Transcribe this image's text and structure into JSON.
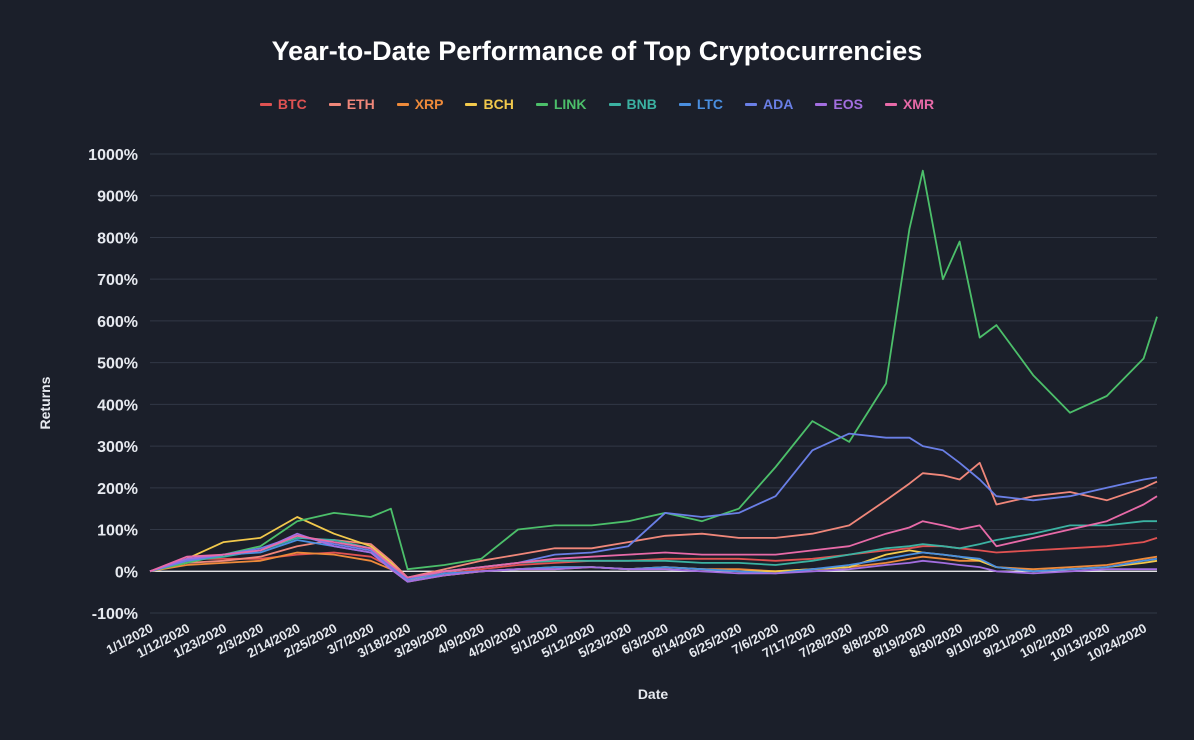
{
  "chart_data": {
    "type": "line",
    "title": "Year-to-Date Performance of Top Cryptocurrencies",
    "xlabel": "Date",
    "ylabel": "Returns",
    "ylim": [
      -100,
      1000
    ],
    "y_ticks": [
      "-100%",
      "0%",
      "100%",
      "200%",
      "300%",
      "400%",
      "500%",
      "600%",
      "700%",
      "800%",
      "900%",
      "1000%"
    ],
    "x_ticks": [
      "1/1/2020",
      "1/12/2020",
      "1/23/2020",
      "2/3/2020",
      "2/14/2020",
      "2/25/2020",
      "3/7/2020",
      "3/18/2020",
      "3/29/2020",
      "4/9/2020",
      "4/20/2020",
      "5/1/2020",
      "5/12/2020",
      "5/23/2020",
      "6/3/2020",
      "6/14/2020",
      "6/25/2020",
      "7/6/2020",
      "7/17/2020",
      "7/28/2020",
      "8/8/2020",
      "8/19/2020",
      "8/30/2020",
      "9/10/2020",
      "9/21/2020",
      "10/2/2020",
      "10/13/2020",
      "10/24/2020"
    ],
    "grid": true,
    "legend_position": "top",
    "x": [
      "1/1/2020",
      "1/12/2020",
      "1/23/2020",
      "2/3/2020",
      "2/14/2020",
      "2/25/2020",
      "3/7/2020",
      "3/13/2020",
      "3/18/2020",
      "3/29/2020",
      "4/9/2020",
      "4/20/2020",
      "5/1/2020",
      "5/12/2020",
      "5/23/2020",
      "6/3/2020",
      "6/14/2020",
      "6/25/2020",
      "7/6/2020",
      "7/17/2020",
      "7/28/2020",
      "8/8/2020",
      "8/15/2020",
      "8/19/2020",
      "8/25/2020",
      "8/30/2020",
      "9/5/2020",
      "9/10/2020",
      "9/21/2020",
      "10/2/2020",
      "10/13/2020",
      "10/24/2020",
      "10/28/2020"
    ],
    "series": [
      {
        "name": "BTC",
        "color": "#e05252",
        "values": [
          0,
          30,
          30,
          30,
          40,
          45,
          35,
          10,
          -20,
          -5,
          5,
          15,
          20,
          25,
          25,
          30,
          30,
          30,
          25,
          30,
          40,
          50,
          55,
          60,
          60,
          55,
          50,
          45,
          50,
          55,
          60,
          70,
          80
        ]
      },
      {
        "name": "ETH",
        "color": "#f0877a",
        "values": [
          0,
          20,
          25,
          35,
          60,
          75,
          65,
          25,
          -15,
          5,
          25,
          40,
          55,
          55,
          70,
          85,
          90,
          80,
          80,
          90,
          110,
          170,
          210,
          235,
          230,
          220,
          260,
          160,
          180,
          190,
          170,
          200,
          215
        ]
      },
      {
        "name": "XRP",
        "color": "#ee8a3a",
        "values": [
          0,
          15,
          20,
          25,
          45,
          40,
          25,
          5,
          -25,
          -10,
          0,
          5,
          5,
          10,
          5,
          10,
          5,
          5,
          0,
          5,
          10,
          20,
          30,
          35,
          30,
          25,
          25,
          10,
          5,
          10,
          15,
          30,
          35
        ]
      },
      {
        "name": "BCH",
        "color": "#f2c94c",
        "values": [
          0,
          30,
          70,
          80,
          130,
          90,
          60,
          20,
          -20,
          -10,
          0,
          5,
          10,
          10,
          5,
          10,
          5,
          0,
          0,
          5,
          10,
          40,
          50,
          45,
          40,
          35,
          25,
          10,
          0,
          5,
          10,
          20,
          25
        ]
      },
      {
        "name": "LINK",
        "color": "#4cbf6a",
        "values": [
          0,
          20,
          40,
          60,
          120,
          140,
          130,
          150,
          5,
          15,
          30,
          100,
          110,
          110,
          120,
          140,
          120,
          150,
          250,
          360,
          310,
          450,
          820,
          960,
          700,
          790,
          560,
          590,
          470,
          380,
          420,
          510,
          610
        ]
      },
      {
        "name": "BNB",
        "color": "#3bb2a2",
        "values": [
          0,
          25,
          35,
          50,
          80,
          75,
          55,
          15,
          -20,
          0,
          10,
          20,
          25,
          25,
          25,
          25,
          20,
          20,
          15,
          25,
          40,
          55,
          60,
          65,
          60,
          55,
          65,
          75,
          90,
          110,
          110,
          120,
          120
        ]
      },
      {
        "name": "LTC",
        "color": "#4a8fe0",
        "values": [
          0,
          25,
          40,
          45,
          75,
          60,
          45,
          10,
          -25,
          -5,
          0,
          5,
          10,
          10,
          5,
          10,
          5,
          0,
          -5,
          5,
          15,
          30,
          40,
          45,
          40,
          35,
          30,
          10,
          0,
          5,
          10,
          25,
          30
        ]
      },
      {
        "name": "ADA",
        "color": "#6a7fe6",
        "values": [
          0,
          25,
          40,
          55,
          85,
          65,
          50,
          10,
          -20,
          0,
          10,
          20,
          40,
          45,
          60,
          140,
          130,
          140,
          180,
          290,
          330,
          320,
          320,
          300,
          290,
          260,
          220,
          180,
          170,
          180,
          200,
          220,
          225
        ]
      },
      {
        "name": "EOS",
        "color": "#a36ee0",
        "values": [
          0,
          30,
          40,
          50,
          90,
          60,
          45,
          5,
          -25,
          -10,
          0,
          5,
          5,
          10,
          5,
          5,
          0,
          -5,
          -5,
          0,
          5,
          15,
          20,
          25,
          20,
          15,
          10,
          0,
          -5,
          0,
          5,
          5,
          5
        ]
      },
      {
        "name": "XMR",
        "color": "#e86aa8",
        "values": [
          0,
          35,
          40,
          50,
          85,
          70,
          55,
          15,
          -15,
          0,
          10,
          20,
          30,
          35,
          40,
          45,
          40,
          40,
          40,
          50,
          60,
          90,
          105,
          120,
          110,
          100,
          110,
          60,
          80,
          100,
          120,
          160,
          180
        ]
      }
    ]
  }
}
